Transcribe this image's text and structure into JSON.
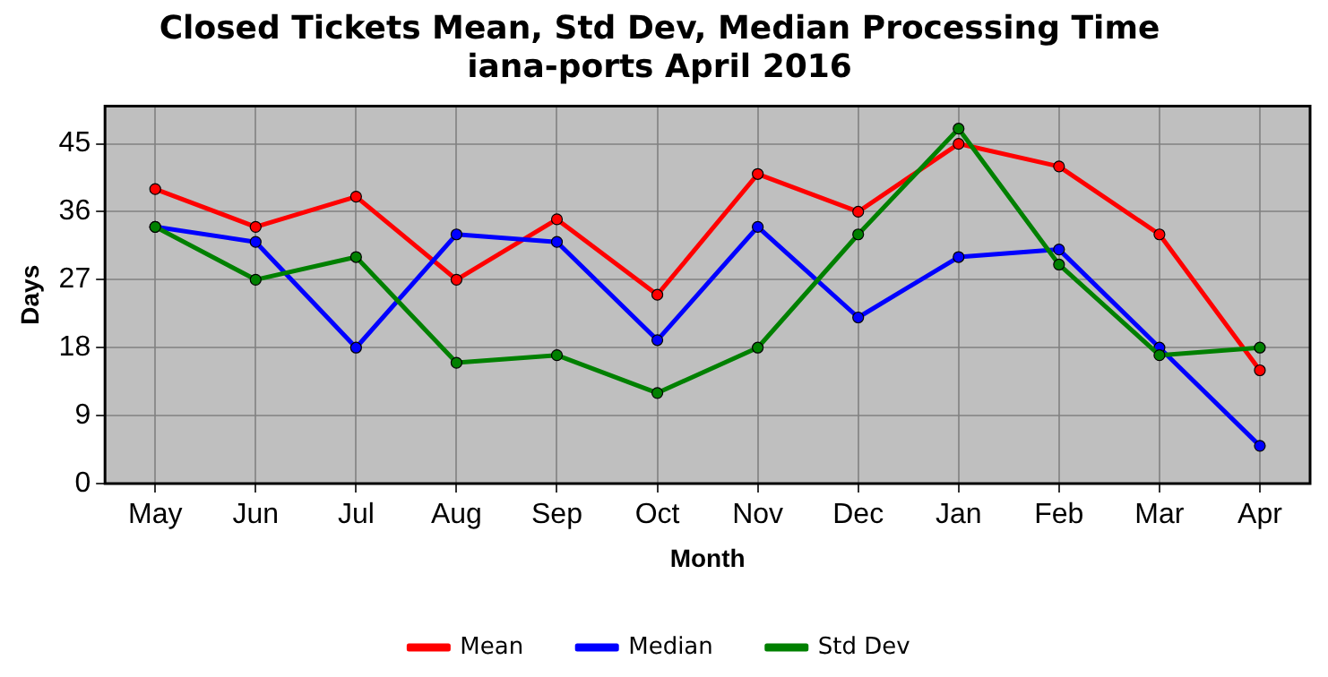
{
  "chart_data": {
    "type": "line",
    "title": "Closed Tickets Mean, Std Dev, Median Processing Time\niana-ports April 2016",
    "xlabel": "Month",
    "ylabel": "Days",
    "categories": [
      "May",
      "Jun",
      "Jul",
      "Aug",
      "Sep",
      "Oct",
      "Nov",
      "Dec",
      "Jan",
      "Feb",
      "Mar",
      "Apr"
    ],
    "series": [
      {
        "name": "Mean",
        "color": "#ff0000",
        "values": [
          39,
          34,
          38,
          27,
          35,
          25,
          41,
          36,
          45,
          42,
          33,
          15
        ]
      },
      {
        "name": "Median",
        "color": "#0000ff",
        "values": [
          34,
          32,
          18,
          33,
          32,
          19,
          34,
          22,
          30,
          31,
          18,
          5
        ]
      },
      {
        "name": "Std Dev",
        "color": "#008000",
        "values": [
          34,
          27,
          30,
          16,
          17,
          12,
          18,
          33,
          47,
          29,
          17,
          18
        ]
      }
    ],
    "ylim": [
      0,
      50
    ],
    "yticks": [
      0,
      9,
      18,
      27,
      36,
      45
    ],
    "grid": true,
    "legend": "bottom",
    "marker": "circle",
    "line_style": "solid"
  }
}
